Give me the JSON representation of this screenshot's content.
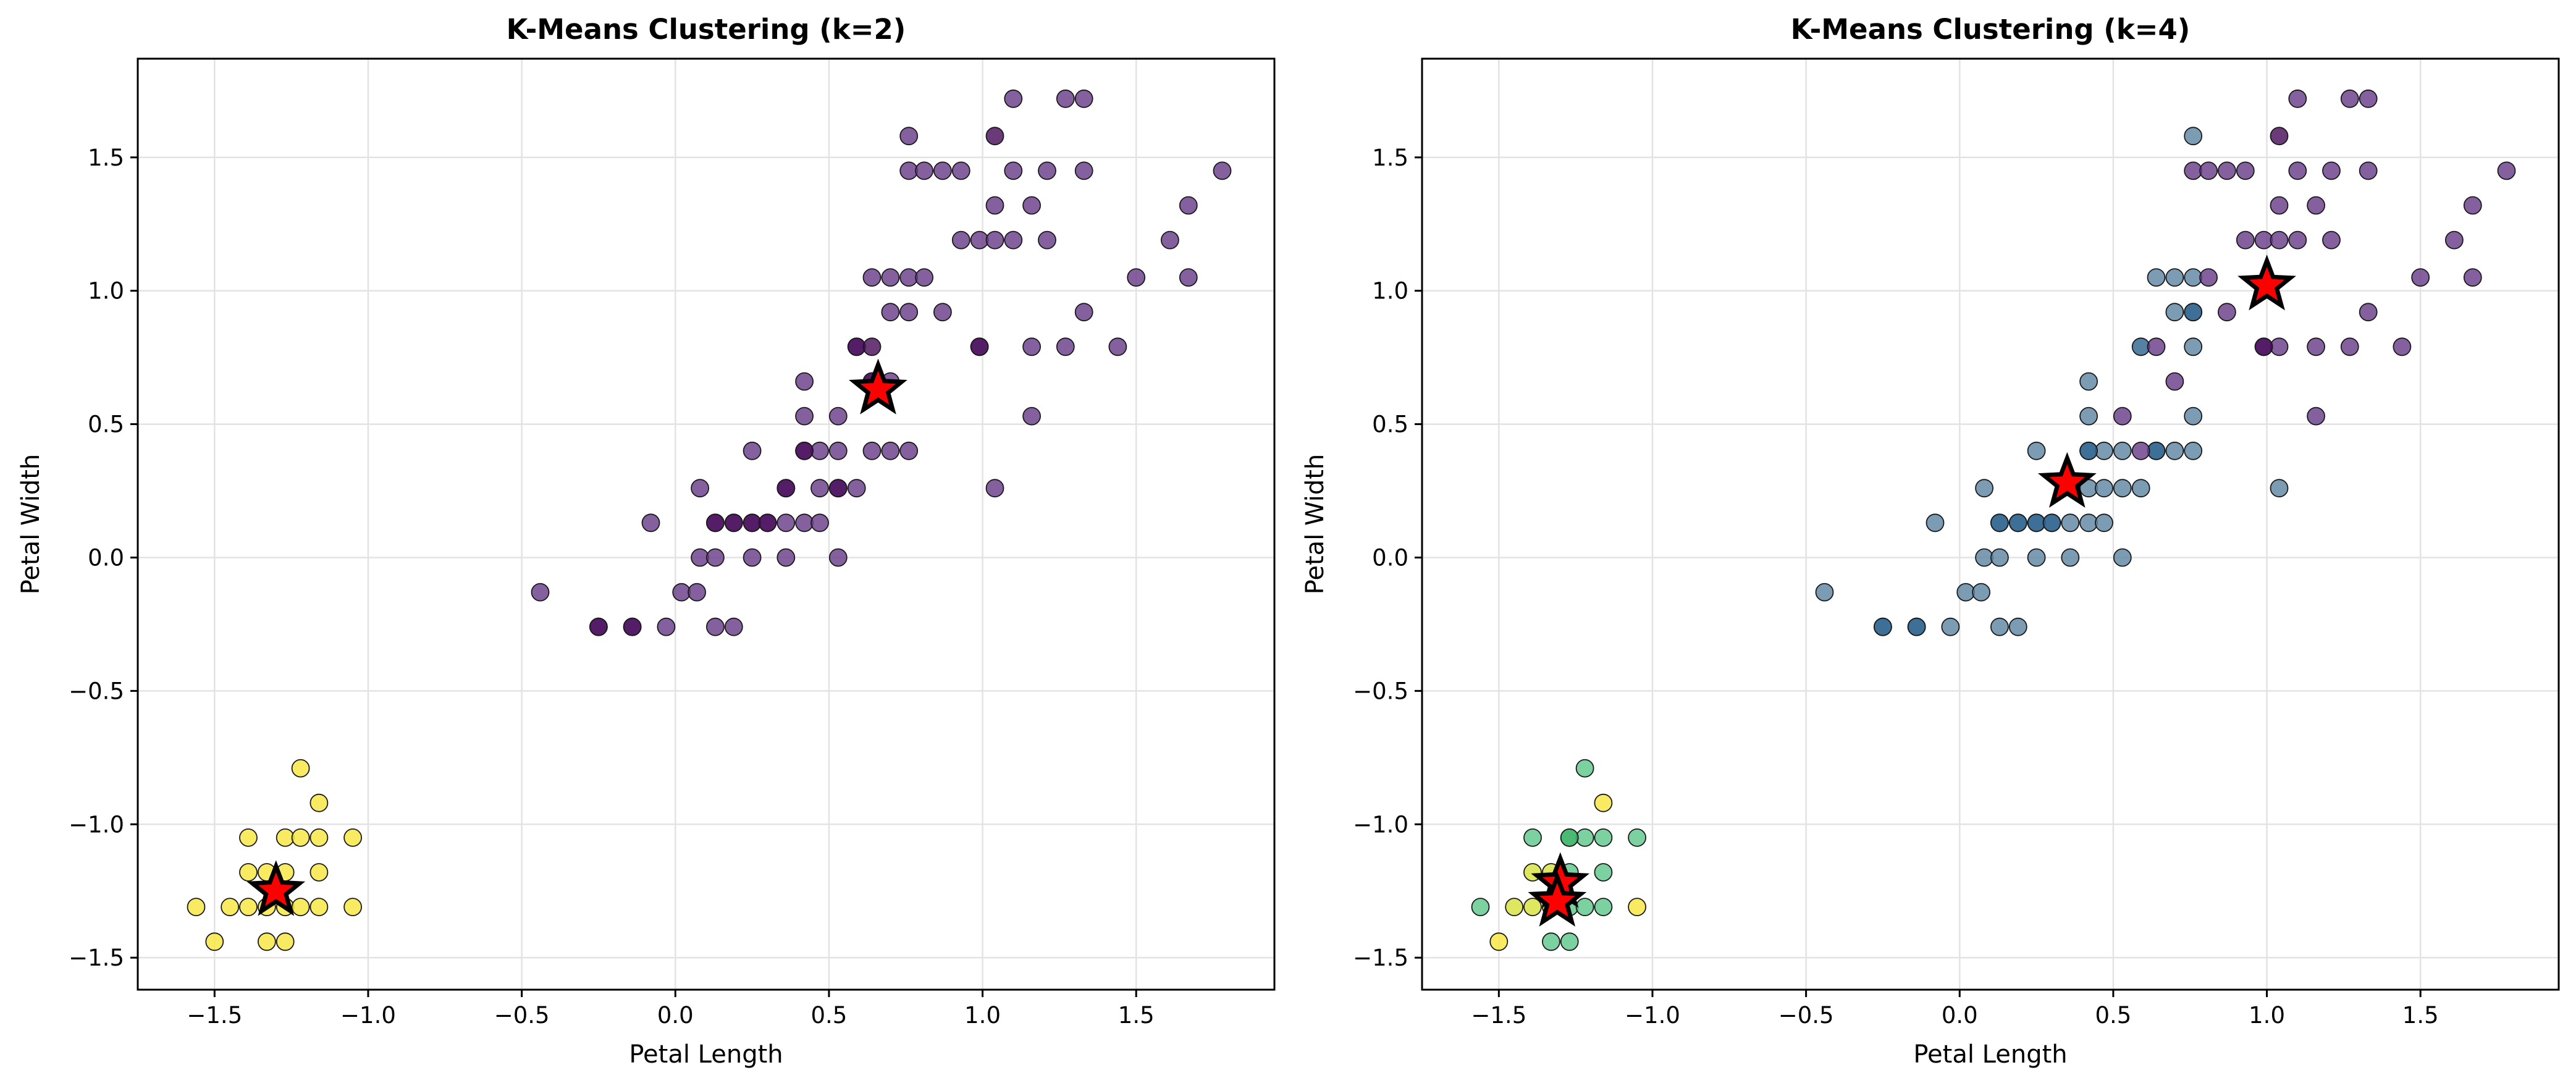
{
  "chart_data": [
    {
      "type": "scatter",
      "title": "K-Means Clustering (k=2)",
      "xlabel": "Petal Length",
      "ylabel": "Petal Width",
      "xlim": [
        -1.75,
        1.95
      ],
      "ylim": [
        -1.62,
        1.87
      ],
      "xticks": [
        -1.5,
        -1.0,
        -0.5,
        0.0,
        0.5,
        1.0,
        1.5
      ],
      "yticks": [
        -1.5,
        -1.0,
        -0.5,
        0.0,
        0.5,
        1.0,
        1.5
      ],
      "xtick_labels": [
        "−1.5",
        "−1.0",
        "−0.5",
        "0.0",
        "0.5",
        "1.0",
        "1.5"
      ],
      "ytick_labels": [
        "−1.5",
        "−1.0",
        "−0.5",
        "0.0",
        "0.5",
        "1.0",
        "1.5"
      ],
      "grid": true,
      "series": [
        {
          "color": "#6a3d8a",
          "points": [
            [
              -0.44,
              -0.13
            ],
            [
              -0.25,
              -0.26
            ],
            [
              -0.14,
              -0.26
            ],
            [
              -0.03,
              -0.26
            ],
            [
              -0.08,
              0.13
            ],
            [
              0.02,
              -0.13
            ],
            [
              0.07,
              -0.13
            ],
            [
              0.08,
              0.0
            ],
            [
              0.08,
              0.26
            ],
            [
              0.13,
              0.0
            ],
            [
              0.13,
              0.13
            ],
            [
              0.13,
              -0.26
            ],
            [
              0.19,
              -0.26
            ],
            [
              0.19,
              0.13
            ],
            [
              0.25,
              0.13
            ],
            [
              0.25,
              0.4
            ],
            [
              0.25,
              0.0
            ],
            [
              0.3,
              0.13
            ],
            [
              0.36,
              0.0
            ],
            [
              0.36,
              0.13
            ],
            [
              0.36,
              0.26
            ],
            [
              0.42,
              0.13
            ],
            [
              0.42,
              0.4
            ],
            [
              0.42,
              0.53
            ],
            [
              0.42,
              0.66
            ],
            [
              0.47,
              0.13
            ],
            [
              0.47,
              0.26
            ],
            [
              0.47,
              0.4
            ],
            [
              0.53,
              0.0
            ],
            [
              0.53,
              0.26
            ],
            [
              0.53,
              0.4
            ],
            [
              0.53,
              0.53
            ],
            [
              0.59,
              0.26
            ],
            [
              0.59,
              0.79
            ],
            [
              0.64,
              0.4
            ],
            [
              0.64,
              0.66
            ],
            [
              0.64,
              1.05
            ],
            [
              0.7,
              0.4
            ],
            [
              0.7,
              0.92
            ],
            [
              0.7,
              1.05
            ],
            [
              0.7,
              0.66
            ],
            [
              0.76,
              0.4
            ],
            [
              0.76,
              0.92
            ],
            [
              0.76,
              1.05
            ],
            [
              0.76,
              1.45
            ],
            [
              0.76,
              1.58
            ],
            [
              0.81,
              1.05
            ],
            [
              0.81,
              1.45
            ],
            [
              0.87,
              0.92
            ],
            [
              0.87,
              1.45
            ],
            [
              0.93,
              1.19
            ],
            [
              0.93,
              1.45
            ],
            [
              0.99,
              0.79
            ],
            [
              0.99,
              1.19
            ],
            [
              1.04,
              0.26
            ],
            [
              1.04,
              1.19
            ],
            [
              1.04,
              1.32
            ],
            [
              1.1,
              1.19
            ],
            [
              1.1,
              1.45
            ],
            [
              1.1,
              1.72
            ],
            [
              1.16,
              0.53
            ],
            [
              1.16,
              0.79
            ],
            [
              1.16,
              1.32
            ],
            [
              1.21,
              1.19
            ],
            [
              1.21,
              1.45
            ],
            [
              1.27,
              0.79
            ],
            [
              1.27,
              1.72
            ],
            [
              1.33,
              0.92
            ],
            [
              1.33,
              1.45
            ],
            [
              1.33,
              1.72
            ],
            [
              1.44,
              0.79
            ],
            [
              1.5,
              1.05
            ],
            [
              1.61,
              1.19
            ],
            [
              1.67,
              1.05
            ],
            [
              1.67,
              1.32
            ],
            [
              1.78,
              1.45
            ]
          ]
        },
        {
          "color": "#4a0f5c",
          "points": [
            [
              -0.25,
              -0.26
            ],
            [
              -0.14,
              -0.26
            ],
            [
              0.13,
              0.13
            ],
            [
              0.19,
              0.13
            ],
            [
              0.25,
              0.13
            ],
            [
              0.3,
              0.13
            ],
            [
              0.36,
              0.26
            ],
            [
              0.42,
              0.4
            ],
            [
              0.53,
              0.26
            ],
            [
              0.59,
              0.79
            ],
            [
              0.64,
              0.79
            ],
            [
              0.64,
              0.66
            ],
            [
              0.99,
              0.79
            ],
            [
              1.04,
              1.58
            ]
          ]
        },
        {
          "color": "#f6e640",
          "points": [
            [
              -1.56,
              -1.31
            ],
            [
              -1.5,
              -1.44
            ],
            [
              -1.45,
              -1.31
            ],
            [
              -1.39,
              -1.31
            ],
            [
              -1.39,
              -1.18
            ],
            [
              -1.39,
              -1.05
            ],
            [
              -1.33,
              -1.31
            ],
            [
              -1.33,
              -1.18
            ],
            [
              -1.33,
              -1.44
            ],
            [
              -1.27,
              -1.05
            ],
            [
              -1.27,
              -1.18
            ],
            [
              -1.27,
              -1.31
            ],
            [
              -1.27,
              -1.44
            ],
            [
              -1.22,
              -1.31
            ],
            [
              -1.22,
              -1.05
            ],
            [
              -1.22,
              -0.79
            ],
            [
              -1.16,
              -1.05
            ],
            [
              -1.16,
              -0.92
            ],
            [
              -1.16,
              -1.18
            ],
            [
              -1.16,
              -1.31
            ],
            [
              -1.05,
              -1.05
            ],
            [
              -1.05,
              -1.31
            ]
          ]
        }
      ],
      "centroids": [
        [
          0.66,
          0.63
        ],
        [
          -1.3,
          -1.25
        ]
      ],
      "centroid_color": "#ff0000"
    },
    {
      "type": "scatter",
      "title": "K-Means Clustering (k=4)",
      "xlabel": "Petal Length",
      "ylabel": "Petal Width",
      "xlim": [
        -1.75,
        1.95
      ],
      "ylim": [
        -1.62,
        1.87
      ],
      "xticks": [
        -1.5,
        -1.0,
        -0.5,
        0.0,
        0.5,
        1.0,
        1.5
      ],
      "yticks": [
        -1.5,
        -1.0,
        -0.5,
        0.0,
        0.5,
        1.0,
        1.5
      ],
      "xtick_labels": [
        "−1.5",
        "−1.0",
        "−0.5",
        "0.0",
        "0.5",
        "1.0",
        "1.5"
      ],
      "ytick_labels": [
        "−1.5",
        "−1.0",
        "−0.5",
        "0.0",
        "0.5",
        "1.0",
        "1.5"
      ],
      "grid": true,
      "series": [
        {
          "color": "#5f86a3",
          "points": [
            [
              -0.44,
              -0.13
            ],
            [
              -0.25,
              -0.26
            ],
            [
              -0.14,
              -0.26
            ],
            [
              -0.03,
              -0.26
            ],
            [
              -0.08,
              0.13
            ],
            [
              0.02,
              -0.13
            ],
            [
              0.07,
              -0.13
            ],
            [
              0.08,
              0.0
            ],
            [
              0.08,
              0.26
            ],
            [
              0.13,
              0.0
            ],
            [
              0.13,
              0.13
            ],
            [
              0.13,
              -0.26
            ],
            [
              0.19,
              -0.26
            ],
            [
              0.19,
              0.13
            ],
            [
              0.25,
              0.13
            ],
            [
              0.25,
              0.4
            ],
            [
              0.25,
              0.0
            ],
            [
              0.3,
              0.13
            ],
            [
              0.36,
              0.0
            ],
            [
              0.36,
              0.13
            ],
            [
              0.42,
              0.13
            ],
            [
              0.42,
              0.26
            ],
            [
              0.42,
              0.4
            ],
            [
              0.42,
              0.53
            ],
            [
              0.42,
              0.66
            ],
            [
              0.47,
              0.13
            ],
            [
              0.47,
              0.26
            ],
            [
              0.47,
              0.4
            ],
            [
              0.53,
              0.0
            ],
            [
              0.53,
              0.26
            ],
            [
              0.53,
              0.4
            ],
            [
              0.59,
              0.26
            ],
            [
              0.64,
              0.4
            ],
            [
              0.64,
              1.05
            ],
            [
              0.7,
              0.4
            ],
            [
              0.7,
              0.92
            ],
            [
              0.7,
              1.05
            ],
            [
              0.76,
              0.4
            ],
            [
              0.76,
              0.53
            ],
            [
              0.76,
              0.79
            ],
            [
              0.76,
              0.92
            ],
            [
              0.76,
              1.05
            ],
            [
              0.76,
              1.58
            ],
            [
              1.04,
              0.26
            ]
          ]
        },
        {
          "color": "#2f6590",
          "points": [
            [
              -0.25,
              -0.26
            ],
            [
              -0.14,
              -0.26
            ],
            [
              0.13,
              0.13
            ],
            [
              0.19,
              0.13
            ],
            [
              0.25,
              0.13
            ],
            [
              0.3,
              0.13
            ],
            [
              0.42,
              0.4
            ],
            [
              0.59,
              0.79
            ],
            [
              0.64,
              0.4
            ],
            [
              0.76,
              0.92
            ]
          ]
        },
        {
          "color": "#6a3d8a",
          "points": [
            [
              0.53,
              0.53
            ],
            [
              0.59,
              0.4
            ],
            [
              0.64,
              0.79
            ],
            [
              0.7,
              0.66
            ],
            [
              0.76,
              1.45
            ],
            [
              0.81,
              1.05
            ],
            [
              0.81,
              1.45
            ],
            [
              0.87,
              0.92
            ],
            [
              0.87,
              1.45
            ],
            [
              0.93,
              1.19
            ],
            [
              0.93,
              1.45
            ],
            [
              0.99,
              0.79
            ],
            [
              0.99,
              1.19
            ],
            [
              1.04,
              0.79
            ],
            [
              1.04,
              1.19
            ],
            [
              1.04,
              1.32
            ],
            [
              1.1,
              1.19
            ],
            [
              1.1,
              1.45
            ],
            [
              1.1,
              1.72
            ],
            [
              1.16,
              0.53
            ],
            [
              1.16,
              0.79
            ],
            [
              1.16,
              1.32
            ],
            [
              1.21,
              1.19
            ],
            [
              1.21,
              1.45
            ],
            [
              1.27,
              0.79
            ],
            [
              1.27,
              1.72
            ],
            [
              1.33,
              0.92
            ],
            [
              1.33,
              1.45
            ],
            [
              1.33,
              1.72
            ],
            [
              1.44,
              0.79
            ],
            [
              1.5,
              1.05
            ],
            [
              1.61,
              1.19
            ],
            [
              1.67,
              1.05
            ],
            [
              1.67,
              1.32
            ],
            [
              1.78,
              1.45
            ]
          ]
        },
        {
          "color": "#4a0f5c",
          "points": [
            [
              1.04,
              1.58
            ],
            [
              0.99,
              0.79
            ]
          ]
        },
        {
          "color": "#5fc78b",
          "points": [
            [
              -1.56,
              -1.31
            ],
            [
              -1.39,
              -1.05
            ],
            [
              -1.33,
              -1.44
            ],
            [
              -1.27,
              -1.44
            ],
            [
              -1.27,
              -1.05
            ],
            [
              -1.27,
              -1.18
            ],
            [
              -1.27,
              -1.31
            ],
            [
              -1.22,
              -1.31
            ],
            [
              -1.22,
              -1.05
            ],
            [
              -1.22,
              -0.79
            ],
            [
              -1.16,
              -1.05
            ],
            [
              -1.16,
              -1.18
            ],
            [
              -1.16,
              -1.31
            ],
            [
              -1.05,
              -1.05
            ]
          ]
        },
        {
          "color": "#3fb46b",
          "points": [
            [
              -1.27,
              -1.05
            ]
          ]
        },
        {
          "color": "#d8e23e",
          "points": [
            [
              -1.45,
              -1.31
            ],
            [
              -1.39,
              -1.31
            ],
            [
              -1.33,
              -1.31
            ],
            [
              -1.33,
              -1.18
            ],
            [
              -1.39,
              -1.18
            ]
          ]
        },
        {
          "color": "#f6e640",
          "points": [
            [
              -1.5,
              -1.44
            ],
            [
              -1.16,
              -0.92
            ],
            [
              -1.05,
              -1.31
            ]
          ]
        }
      ],
      "centroids": [
        [
          1.0,
          1.02
        ],
        [
          0.35,
          0.28
        ],
        [
          -1.3,
          -1.22
        ],
        [
          -1.31,
          -1.29
        ]
      ],
      "centroid_color": "#ff0000"
    }
  ]
}
